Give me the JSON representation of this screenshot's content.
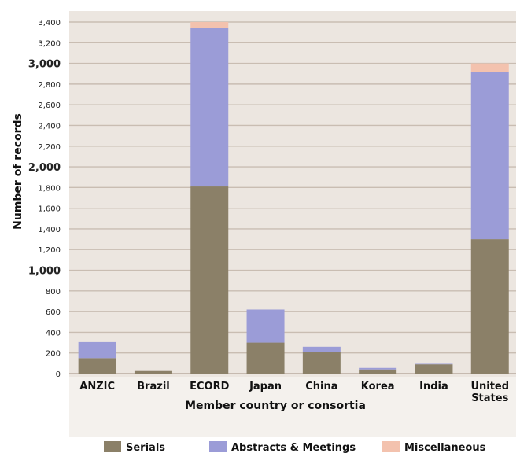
{
  "chart_data": {
    "type": "bar",
    "stacked": true,
    "categories": [
      "ANZIC",
      "Brazil",
      "ECORD",
      "Japan",
      "China",
      "Korea",
      "India",
      "United\nStates"
    ],
    "series": [
      {
        "name": "Serials",
        "color": "#8b8068",
        "values": [
          150,
          25,
          1810,
          300,
          210,
          40,
          90,
          1300
        ]
      },
      {
        "name": "Abstracts & Meetings",
        "color": "#9b9cd7",
        "values": [
          155,
          0,
          1530,
          320,
          50,
          15,
          5,
          1620
        ]
      },
      {
        "name": "Miscellaneous",
        "color": "#f3c2ae",
        "values": [
          0,
          0,
          60,
          0,
          0,
          0,
          0,
          80
        ]
      }
    ],
    "ylabel": "Number of records",
    "xlabel": "Member country or consortia",
    "ylim": [
      0,
      3400
    ],
    "yticks": [
      {
        "value": 0,
        "label": "0"
      },
      {
        "value": 200,
        "label": "200"
      },
      {
        "value": 400,
        "label": "400"
      },
      {
        "value": 600,
        "label": "600"
      },
      {
        "value": 800,
        "label": "800"
      },
      {
        "value": 1000,
        "label": "1,000",
        "major": true
      },
      {
        "value": 1200,
        "label": "1,200"
      },
      {
        "value": 1400,
        "label": "1,400"
      },
      {
        "value": 1600,
        "label": "1,600"
      },
      {
        "value": 1800,
        "label": "1,800"
      },
      {
        "value": 2000,
        "label": "2,000",
        "major": true
      },
      {
        "value": 2200,
        "label": "2,200"
      },
      {
        "value": 2400,
        "label": "2,400"
      },
      {
        "value": 2600,
        "label": "2,600"
      },
      {
        "value": 2800,
        "label": "2,800"
      },
      {
        "value": 3000,
        "label": "3,000",
        "major": true
      },
      {
        "value": 3200,
        "label": "3,200"
      },
      {
        "value": 3400,
        "label": "3,400"
      }
    ],
    "grid": true,
    "gridline_color": "#c9bdb2",
    "legend_position": "bottom"
  }
}
